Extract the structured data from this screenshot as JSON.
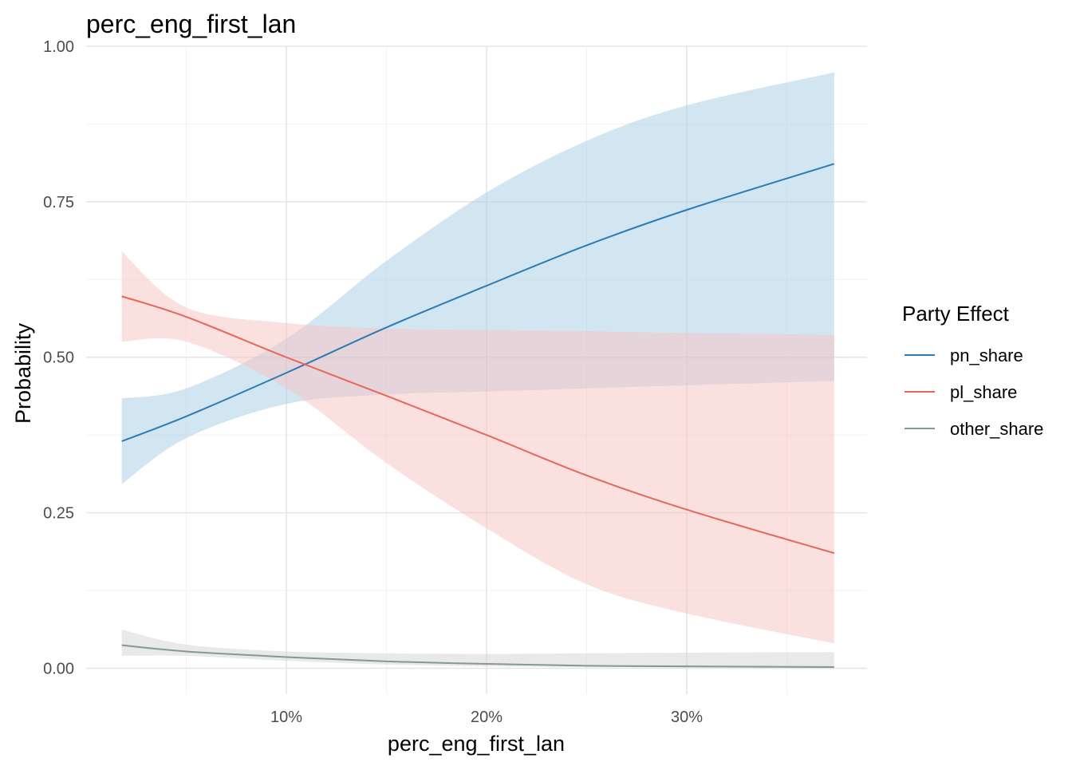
{
  "chart_data": {
    "type": "line",
    "title": "perc_eng_first_lan",
    "xlabel": "perc_eng_first_lan",
    "ylabel": "Probability",
    "xlim": [
      0.0,
      0.39
    ],
    "ylim": [
      -0.0417,
      1.0
    ],
    "x_ticks": [
      0.1,
      0.2,
      0.3
    ],
    "x_tick_labels": [
      "10%",
      "20%",
      "30%"
    ],
    "x_minor": [
      0.05,
      0.15,
      0.25,
      0.35
    ],
    "y_ticks": [
      0.0,
      0.25,
      0.5,
      0.75,
      1.0
    ],
    "y_tick_labels": [
      "0.00",
      "0.25",
      "0.50",
      "0.75",
      "1.00"
    ],
    "y_minor": [
      0.125,
      0.375,
      0.625,
      0.875
    ],
    "grid": true,
    "legend": {
      "title": "Party Effect",
      "position": "right",
      "entries": [
        "pn_share",
        "pl_share",
        "other_share"
      ]
    },
    "x": [
      0.0178,
      0.05,
      0.1,
      0.15,
      0.2,
      0.25,
      0.3,
      0.3736
    ],
    "series": [
      {
        "name": "pn_share",
        "color": "#2c7bb6",
        "ribbon_color": "#a6cee3",
        "values": [
          0.365,
          0.405,
          0.475,
          0.548,
          0.615,
          0.68,
          0.737,
          0.811
        ],
        "lower": [
          0.296,
          0.37,
          0.425,
          0.44,
          0.445,
          0.45,
          0.455,
          0.462
        ],
        "upper": [
          0.434,
          0.45,
          0.53,
          0.655,
          0.765,
          0.848,
          0.905,
          0.958
        ]
      },
      {
        "name": "pl_share",
        "color": "#e8675a",
        "ribbon_color": "#f8c1c1",
        "values": [
          0.598,
          0.565,
          0.5,
          0.438,
          0.375,
          0.31,
          0.255,
          0.185
        ],
        "lower": [
          0.525,
          0.525,
          0.45,
          0.33,
          0.225,
          0.135,
          0.088,
          0.04
        ],
        "upper": [
          0.67,
          0.58,
          0.555,
          0.546,
          0.544,
          0.542,
          0.539,
          0.536
        ]
      },
      {
        "name": "other_share",
        "color": "#869896",
        "ribbon_color": "#d7d7d7",
        "values": [
          0.037,
          0.027,
          0.018,
          0.011,
          0.007,
          0.004,
          0.003,
          0.002
        ],
        "lower": [
          0.02,
          0.02,
          0.012,
          0.006,
          0.003,
          0.002,
          0.001,
          0.0
        ],
        "upper": [
          0.062,
          0.038,
          0.027,
          0.024,
          0.023,
          0.024,
          0.025,
          0.026
        ]
      }
    ]
  }
}
